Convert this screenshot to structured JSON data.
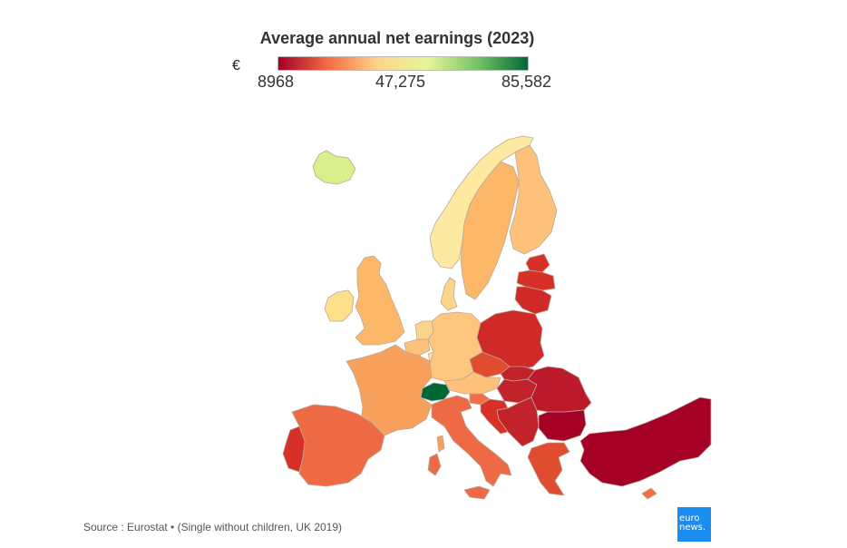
{
  "title": "Average annual net earnings (2023)",
  "legend": {
    "unit": "€",
    "min_label": "8968",
    "mid_label": "47,275",
    "max_label": "85,582",
    "min_value": 8968,
    "mid_value": 47275,
    "max_value": 85582,
    "colors": [
      "#a50026",
      "#f46d43",
      "#fdd58a",
      "#e6f598",
      "#74c365",
      "#006837"
    ]
  },
  "source": "Source : Eurostat • (Single without children, UK 2019)",
  "logo": {
    "line1": "euro",
    "line2": "news."
  },
  "regions": [
    {
      "name": "Iceland",
      "color": "#d9ef8b"
    },
    {
      "name": "Norway",
      "color": "#fee9a1"
    },
    {
      "name": "Sweden",
      "color": "#fdb768"
    },
    {
      "name": "Finland",
      "color": "#fdc17a"
    },
    {
      "name": "Estonia",
      "color": "#d73027"
    },
    {
      "name": "Latvia",
      "color": "#d73027"
    },
    {
      "name": "Lithuania",
      "color": "#cf2a27"
    },
    {
      "name": "Denmark",
      "color": "#fdd58a"
    },
    {
      "name": "United Kingdom",
      "color": "#fdb768"
    },
    {
      "name": "Ireland",
      "color": "#fee08b"
    },
    {
      "name": "Netherlands",
      "color": "#fdd58a"
    },
    {
      "name": "Belgium",
      "color": "#fdc17a"
    },
    {
      "name": "Luxembourg",
      "color": "#fee39a"
    },
    {
      "name": "Germany",
      "color": "#fdc67c"
    },
    {
      "name": "Poland",
      "color": "#cf2a27"
    },
    {
      "name": "Czechia",
      "color": "#e04c30"
    },
    {
      "name": "Austria",
      "color": "#fdc17a"
    },
    {
      "name": "Switzerland",
      "color": "#006837"
    },
    {
      "name": "France",
      "color": "#f7a15c"
    },
    {
      "name": "Slovakia",
      "color": "#c2232b"
    },
    {
      "name": "Hungary",
      "color": "#c2232b"
    },
    {
      "name": "Slovenia",
      "color": "#f46d43"
    },
    {
      "name": "Croatia",
      "color": "#d73027"
    },
    {
      "name": "Romania",
      "color": "#bb1a2b"
    },
    {
      "name": "Bulgaria",
      "color": "#a50026"
    },
    {
      "name": "Spain",
      "color": "#ee6a45"
    },
    {
      "name": "Portugal",
      "color": "#d73027"
    },
    {
      "name": "Italy",
      "color": "#ee6a45"
    },
    {
      "name": "Greece",
      "color": "#e04c30"
    },
    {
      "name": "Türkiye",
      "color": "#a50026"
    },
    {
      "name": "Cyprus",
      "color": "#f46d43"
    },
    {
      "name": "Balkans",
      "color": "#c2232b"
    },
    {
      "name": "Corsica",
      "color": "#f7a15c"
    },
    {
      "name": "Sardinia",
      "color": "#ee6a45"
    },
    {
      "name": "Sicily",
      "color": "#ee6a45"
    }
  ]
}
